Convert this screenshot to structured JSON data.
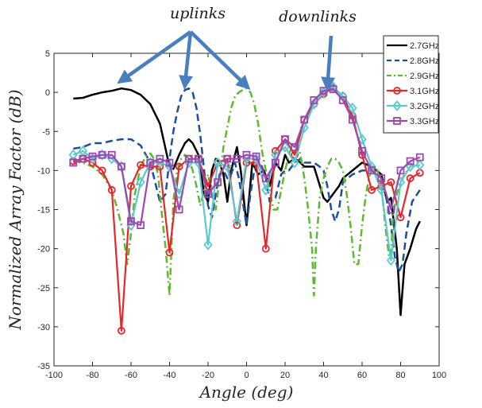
{
  "chart_data": {
    "type": "line",
    "title": "",
    "xlabel": "Angle (deg)",
    "ylabel": "Normalized Array Factor (dB)",
    "xlim": [
      -100,
      100
    ],
    "ylim": [
      -35,
      5
    ],
    "xticks": [
      -100,
      -80,
      -60,
      -40,
      -20,
      0,
      20,
      40,
      60,
      80,
      100
    ],
    "yticks": [
      5,
      0,
      -5,
      -10,
      -15,
      -20,
      -25,
      -30,
      -35
    ],
    "grid": false,
    "legend_position": "top-right",
    "annotations": [
      {
        "text": "uplinks"
      },
      {
        "text": "downlinks"
      }
    ],
    "annotation_arrows": [
      {
        "from_label": "uplinks",
        "to": [
          -65,
          1.5
        ]
      },
      {
        "from_label": "uplinks",
        "to": [
          -32,
          1.0
        ]
      },
      {
        "from_label": "uplinks",
        "to": [
          0,
          0.8
        ]
      },
      {
        "from_label": "downlinks",
        "to": [
          42,
          0.8
        ]
      }
    ],
    "series": [
      {
        "name": "2.7GHz",
        "color": "#000000",
        "style": "solid",
        "marker": "none",
        "x": [
          -90,
          -85,
          -80,
          -75,
          -70,
          -65,
          -60,
          -55,
          -50,
          -45,
          -40,
          -38,
          -35,
          -32,
          -30,
          -28,
          -25,
          -22,
          -20,
          -18,
          -16,
          -14,
          -12,
          -10,
          -8,
          -5,
          -3,
          0,
          3,
          6,
          9,
          12,
          15,
          18,
          20,
          22,
          25,
          28,
          30,
          35,
          40,
          42,
          45,
          48,
          50,
          55,
          60,
          65,
          70,
          73,
          75,
          78,
          80,
          82,
          85,
          88,
          90
        ],
        "y": [
          -0.8,
          -0.7,
          -0.3,
          0,
          0.2,
          0.5,
          0.3,
          -0.3,
          -1.5,
          -4,
          -9.5,
          -9.8,
          -8,
          -6.5,
          -6,
          -6.5,
          -8,
          -13,
          -14,
          -10,
          -8.5,
          -9,
          -10.5,
          -14,
          -10,
          -7,
          -10,
          -17,
          -9,
          -10.5,
          -10,
          -12,
          -9,
          -10,
          -8,
          -9,
          -8.5,
          -9,
          -9.5,
          -9.5,
          -13.5,
          -14,
          -13,
          -12,
          -11,
          -10,
          -9,
          -9.5,
          -10.5,
          -14,
          -13.5,
          -20,
          -28.5,
          -22,
          -20,
          -17.5,
          -16.5
        ]
      },
      {
        "name": "2.8GHz",
        "color": "#1b4f9e",
        "style": "dashed",
        "marker": "none",
        "x": [
          -90,
          -85,
          -80,
          -75,
          -70,
          -65,
          -60,
          -55,
          -50,
          -45,
          -42,
          -40,
          -38,
          -36,
          -34,
          -32,
          -30,
          -28,
          -26,
          -24,
          -22,
          -20,
          -18,
          -16,
          -14,
          -12,
          -10,
          -8,
          -6,
          -4,
          -2,
          0,
          2,
          4,
          6,
          8,
          10,
          12,
          15,
          18,
          20,
          22,
          25,
          28,
          30,
          33,
          35,
          38,
          40,
          42,
          44,
          46,
          48,
          50,
          55,
          60,
          65,
          70,
          73,
          75,
          77,
          79,
          81,
          83,
          86,
          90
        ],
        "y": [
          -7.2,
          -7,
          -6.5,
          -6.5,
          -6.2,
          -6,
          -6,
          -6.8,
          -9,
          -14,
          -13,
          -8.5,
          -5,
          -2.5,
          -0.5,
          0.3,
          0.5,
          0,
          -2,
          -5.5,
          -10,
          -14.5,
          -16,
          -13,
          -10.5,
          -10,
          -11,
          -10.5,
          -9,
          -11,
          -14,
          -17,
          -13,
          -10,
          -9,
          -9.5,
          -11,
          -14,
          -13.5,
          -10.5,
          -10,
          -10,
          -9,
          -8.5,
          -9,
          -9,
          -9,
          -9.5,
          -10,
          -12,
          -15,
          -16.5,
          -15,
          -11.5,
          -10.5,
          -10,
          -10,
          -11,
          -14,
          -17,
          -21,
          -23,
          -22,
          -18,
          -14,
          -12.5
        ]
      },
      {
        "name": "2.9GHz",
        "color": "#5fb832",
        "style": "dashdot",
        "marker": "none",
        "x": [
          -90,
          -85,
          -80,
          -75,
          -70,
          -67,
          -64,
          -62,
          -60,
          -58,
          -55,
          -52,
          -50,
          -48,
          -46,
          -44,
          -42,
          -40,
          -38,
          -36,
          -34,
          -32,
          -30,
          -28,
          -26,
          -24,
          -22,
          -20,
          -18,
          -16,
          -14,
          -12,
          -10,
          -8,
          -6,
          -4,
          -2,
          0,
          2,
          4,
          6,
          8,
          10,
          12,
          14,
          16,
          18,
          20,
          22,
          24,
          26,
          28,
          30,
          32,
          34,
          35,
          36,
          38,
          40,
          42,
          44,
          46,
          48,
          50,
          52,
          54,
          56,
          58,
          60,
          62,
          64,
          66,
          68,
          70,
          72,
          74,
          75,
          76,
          78,
          80,
          82,
          85,
          88,
          90
        ],
        "y": [
          -8.8,
          -9,
          -9.5,
          -10.5,
          -12.5,
          -15,
          -18,
          -22,
          -18,
          -13,
          -9.5,
          -8,
          -7.8,
          -8.5,
          -10.5,
          -15.5,
          -20,
          -26,
          -14,
          -10,
          -8.5,
          -8,
          -8.5,
          -10,
          -12,
          -14.5,
          -12.5,
          -10.5,
          -13,
          -15,
          -11,
          -7,
          -4.5,
          -2,
          -0.5,
          0,
          0.3,
          0.5,
          0,
          -1.5,
          -4,
          -7.5,
          -10,
          -12.5,
          -15,
          -15,
          -12.5,
          -10,
          -8,
          -6.5,
          -6.5,
          -8,
          -11,
          -15,
          -20,
          -26,
          -20,
          -13.5,
          -11,
          -9.5,
          -8.5,
          -8.5,
          -9,
          -10,
          -13,
          -17,
          -22,
          -22,
          -17,
          -13,
          -10.5,
          -9.5,
          -10,
          -12,
          -17,
          -21,
          -21,
          -16,
          -13,
          -11.5,
          -10.5,
          -9.5,
          -9,
          -8.8
        ]
      },
      {
        "name": "3.1GHz",
        "color": "#e8262a",
        "style": "solid",
        "marker": "circle",
        "x": [
          -90,
          -85,
          -80,
          -75,
          -70,
          -65,
          -60,
          -55,
          -50,
          -45,
          -40,
          -35,
          -30,
          -25,
          -20,
          -15,
          -10,
          -5,
          0,
          5,
          10,
          15,
          20,
          25,
          30,
          35,
          40,
          45,
          50,
          55,
          60,
          65,
          70,
          75,
          80,
          85,
          90
        ],
        "y": [
          -8.8,
          -8.5,
          -9,
          -10,
          -12.5,
          -30.5,
          -12,
          -9.3,
          -9.5,
          -9.5,
          -20.5,
          -9.5,
          -8.5,
          -8.5,
          -12,
          -9,
          -8.5,
          -17,
          -9,
          -9,
          -20,
          -7.5,
          -6,
          -8,
          -3.5,
          -1.5,
          -0.2,
          0.6,
          -0.5,
          -3,
          -8,
          -12.5,
          -12,
          -11.5,
          -16,
          -11,
          -10.3
        ]
      },
      {
        "name": "3.2GHz",
        "color": "#5bc8cf",
        "style": "solid",
        "marker": "diamond",
        "x": [
          -90,
          -85,
          -80,
          -75,
          -70,
          -65,
          -60,
          -55,
          -50,
          -45,
          -40,
          -35,
          -30,
          -25,
          -20,
          -15,
          -10,
          -5,
          0,
          5,
          10,
          15,
          20,
          25,
          30,
          35,
          40,
          45,
          50,
          55,
          60,
          65,
          70,
          75,
          80,
          85,
          90
        ],
        "y": [
          -8,
          -7.5,
          -8.5,
          -8,
          -8.5,
          -9.5,
          -17,
          -11.5,
          -9,
          -9,
          -9.5,
          -13,
          -9,
          -9,
          -19.5,
          -9,
          -9.5,
          -16.5,
          -8.5,
          -8.5,
          -12.5,
          -8,
          -7,
          -9,
          -4.5,
          -1.5,
          0,
          0.7,
          -0.5,
          -2,
          -6,
          -9.5,
          -12.5,
          -21.5,
          -11.5,
          -9.5,
          -9.3
        ]
      },
      {
        "name": "3.3GHz",
        "color": "#9b49b0",
        "style": "solid",
        "marker": "square",
        "x": [
          -90,
          -85,
          -80,
          -75,
          -70,
          -65,
          -60,
          -55,
          -50,
          -45,
          -40,
          -35,
          -30,
          -25,
          -20,
          -15,
          -10,
          -5,
          0,
          5,
          10,
          15,
          20,
          25,
          30,
          35,
          40,
          45,
          50,
          55,
          60,
          65,
          70,
          75,
          80,
          85,
          90
        ],
        "y": [
          -9,
          -8.5,
          -8.2,
          -8,
          -8,
          -9.5,
          -16.5,
          -17,
          -9,
          -8.5,
          -9,
          -15,
          -8.5,
          -8.5,
          -13,
          -11.5,
          -8.5,
          -8.5,
          -8,
          -8.2,
          -11,
          -9,
          -6,
          -7,
          -3.5,
          -1,
          0.2,
          0.4,
          -1,
          -3.5,
          -7.5,
          -10,
          -11,
          -15,
          -10,
          -8.8,
          -8.3
        ]
      }
    ]
  }
}
